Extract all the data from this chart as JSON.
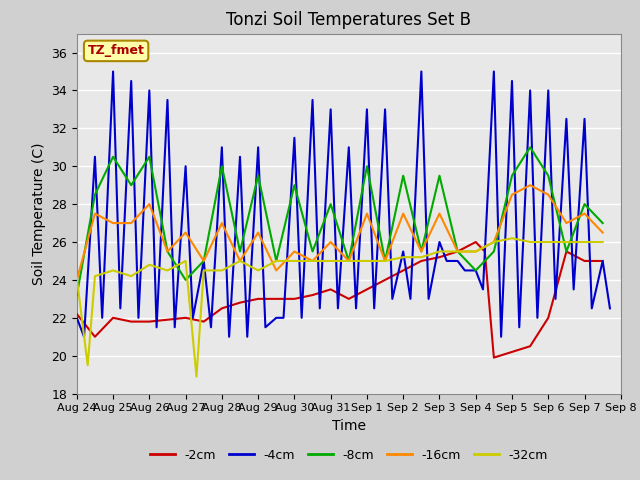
{
  "title": "Tonzi Soil Temperatures Set B",
  "xlabel": "Time",
  "ylabel": "Soil Temperature (C)",
  "annotation": "TZ_fmet",
  "ylim": [
    18,
    37
  ],
  "yticks": [
    18,
    20,
    22,
    24,
    26,
    28,
    30,
    32,
    34,
    36
  ],
  "xlim": [
    0,
    15
  ],
  "xtick_labels": [
    "Aug 24",
    "Aug 25",
    "Aug 26",
    "Aug 27",
    "Aug 28",
    "Aug 29",
    "Aug 30",
    "Aug 31",
    "Sep 1",
    "Sep 2",
    "Sep 3",
    "Sep 4",
    "Sep 5",
    "Sep 6",
    "Sep 7",
    "Sep 8"
  ],
  "fig_facecolor": "#d0d0d0",
  "plot_facecolor": "#e8e8e8",
  "series_neg2": {
    "color": "#cc0000",
    "x": [
      0.0,
      0.5,
      1.0,
      1.5,
      2.0,
      2.5,
      3.0,
      3.5,
      4.0,
      4.5,
      5.0,
      5.5,
      6.0,
      6.5,
      7.0,
      7.5,
      8.0,
      8.5,
      9.0,
      9.5,
      10.0,
      10.5,
      11.0,
      11.25,
      11.5,
      12.0,
      12.5,
      13.0,
      13.5,
      14.0,
      14.5
    ],
    "y": [
      22.2,
      21.0,
      22.0,
      21.8,
      21.8,
      21.9,
      22.0,
      21.8,
      22.5,
      22.8,
      23.0,
      23.0,
      23.0,
      23.2,
      23.5,
      23.0,
      23.5,
      24.0,
      24.5,
      25.0,
      25.2,
      25.5,
      26.0,
      25.5,
      19.9,
      20.2,
      20.5,
      22.0,
      25.5,
      25.0,
      25.0
    ]
  },
  "series_neg4": {
    "color": "#0000cc",
    "x": [
      0.0,
      0.2,
      0.5,
      0.7,
      1.0,
      1.2,
      1.5,
      1.7,
      2.0,
      2.2,
      2.5,
      2.7,
      3.0,
      3.2,
      3.5,
      3.7,
      4.0,
      4.2,
      4.5,
      4.7,
      5.0,
      5.2,
      5.5,
      5.7,
      6.0,
      6.2,
      6.5,
      6.7,
      7.0,
      7.2,
      7.5,
      7.7,
      8.0,
      8.2,
      8.5,
      8.7,
      9.0,
      9.2,
      9.5,
      9.7,
      10.0,
      10.2,
      10.5,
      10.7,
      11.0,
      11.2,
      11.5,
      11.7,
      12.0,
      12.2,
      12.5,
      12.7,
      13.0,
      13.2,
      13.5,
      13.7,
      14.0,
      14.2,
      14.5,
      14.7
    ],
    "y": [
      22.0,
      21.0,
      30.5,
      22.0,
      35.0,
      22.5,
      34.5,
      22.0,
      34.0,
      21.5,
      33.5,
      21.5,
      30.0,
      22.0,
      25.0,
      21.5,
      31.0,
      21.0,
      30.5,
      21.0,
      31.0,
      21.5,
      22.0,
      22.0,
      31.5,
      22.0,
      33.5,
      22.5,
      33.0,
      22.5,
      31.0,
      22.5,
      33.0,
      22.5,
      33.0,
      23.0,
      25.5,
      23.0,
      35.0,
      23.0,
      26.0,
      25.0,
      25.0,
      24.5,
      24.5,
      23.5,
      35.0,
      21.0,
      34.5,
      21.5,
      34.0,
      22.0,
      34.0,
      23.0,
      32.5,
      23.5,
      32.5,
      22.5,
      25.0,
      22.5
    ]
  },
  "series_neg8": {
    "color": "#00aa00",
    "x": [
      0.0,
      0.5,
      1.0,
      1.5,
      2.0,
      2.5,
      3.0,
      3.5,
      4.0,
      4.5,
      5.0,
      5.5,
      6.0,
      6.5,
      7.0,
      7.5,
      8.0,
      8.5,
      9.0,
      9.5,
      10.0,
      10.5,
      11.0,
      11.5,
      12.0,
      12.5,
      13.0,
      13.5,
      14.0,
      14.5
    ],
    "y": [
      23.2,
      28.5,
      30.5,
      29.0,
      30.5,
      25.5,
      24.0,
      25.0,
      30.0,
      25.5,
      29.5,
      25.0,
      29.0,
      25.5,
      28.0,
      25.0,
      30.0,
      25.0,
      29.5,
      25.5,
      29.5,
      25.5,
      24.5,
      25.5,
      29.5,
      31.0,
      29.5,
      25.5,
      28.0,
      27.0
    ]
  },
  "series_neg16": {
    "color": "#ff8800",
    "x": [
      0.0,
      0.5,
      1.0,
      1.5,
      2.0,
      2.5,
      3.0,
      3.5,
      4.0,
      4.5,
      5.0,
      5.5,
      6.0,
      6.5,
      7.0,
      7.5,
      8.0,
      8.5,
      9.0,
      9.5,
      10.0,
      10.5,
      11.0,
      11.5,
      12.0,
      12.5,
      13.0,
      13.5,
      14.0,
      14.5
    ],
    "y": [
      24.0,
      27.5,
      27.0,
      27.0,
      28.0,
      25.5,
      26.5,
      25.0,
      27.0,
      25.0,
      26.5,
      24.5,
      25.5,
      25.0,
      26.0,
      25.0,
      27.5,
      25.0,
      27.5,
      25.5,
      27.5,
      25.5,
      25.5,
      26.0,
      28.5,
      29.0,
      28.5,
      27.0,
      27.5,
      26.5
    ]
  },
  "series_neg32": {
    "color": "#cccc00",
    "x": [
      0.0,
      0.3,
      0.5,
      1.0,
      1.5,
      2.0,
      2.5,
      3.0,
      3.3,
      3.5,
      4.0,
      4.5,
      5.0,
      5.5,
      6.0,
      6.5,
      7.0,
      7.5,
      8.0,
      8.5,
      9.0,
      9.5,
      10.0,
      10.5,
      11.0,
      11.5,
      12.0,
      12.5,
      13.0,
      13.5,
      14.0,
      14.5
    ],
    "y": [
      24.1,
      19.5,
      24.2,
      24.5,
      24.2,
      24.8,
      24.5,
      25.0,
      18.9,
      24.5,
      24.5,
      25.0,
      24.5,
      25.0,
      25.0,
      25.0,
      25.0,
      25.0,
      25.0,
      25.0,
      25.2,
      25.2,
      25.5,
      25.5,
      25.5,
      26.0,
      26.2,
      26.0,
      26.0,
      26.0,
      26.0,
      26.0
    ]
  },
  "legend_labels": [
    "-2cm",
    "-4cm",
    "-8cm",
    "-16cm",
    "-32cm"
  ],
  "legend_colors": [
    "#cc0000",
    "#0000cc",
    "#00aa00",
    "#ff8800",
    "#cccc00"
  ]
}
